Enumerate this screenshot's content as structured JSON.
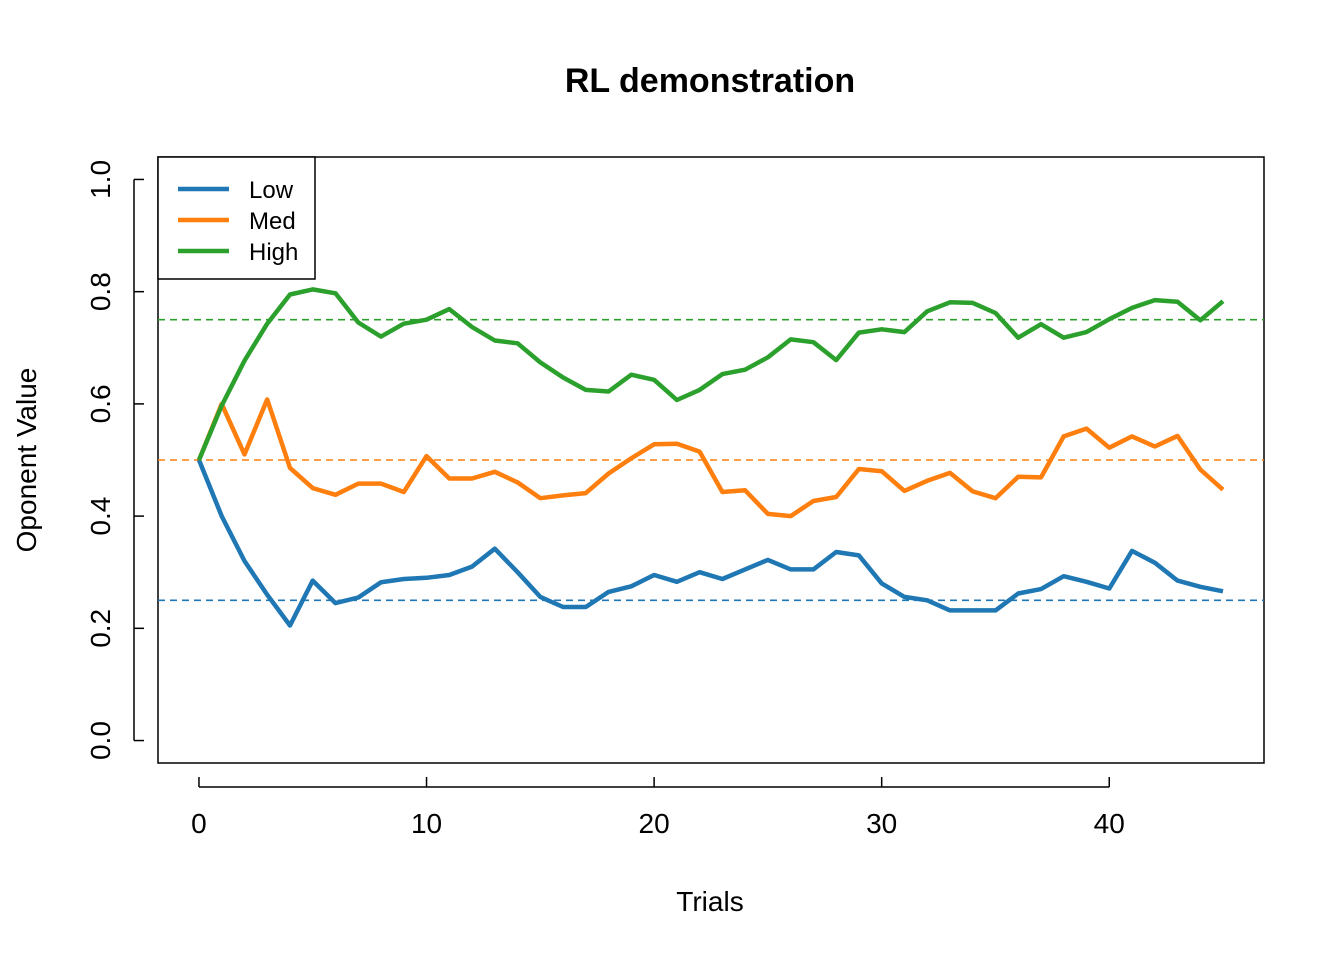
{
  "chart_data": {
    "type": "line",
    "title": "RL demonstration",
    "xlabel": "Trials",
    "ylabel": "Oponent Value",
    "xlim": [
      -1.8,
      46.8
    ],
    "ylim": [
      -0.04,
      1.04
    ],
    "xticks": [
      0,
      10,
      20,
      30,
      40
    ],
    "xtick_labels": [
      "0",
      "10",
      "20",
      "30",
      "40"
    ],
    "yticks": [
      0.0,
      0.2,
      0.4,
      0.6,
      0.8,
      1.0
    ],
    "ytick_labels": [
      "0.0",
      "0.2",
      "0.4",
      "0.6",
      "0.8",
      "1.0"
    ],
    "grid": false,
    "legend_position": "top-left",
    "x": [
      0,
      1,
      2,
      3,
      4,
      5,
      6,
      7,
      8,
      9,
      10,
      11,
      12,
      13,
      14,
      15,
      16,
      17,
      18,
      19,
      20,
      21,
      22,
      23,
      24,
      25,
      26,
      27,
      28,
      29,
      30,
      31,
      32,
      33,
      34,
      35,
      36,
      37,
      38,
      39,
      40,
      41,
      42,
      43,
      44,
      45
    ],
    "series": [
      {
        "name": "Low",
        "color": "#1f77b4",
        "values": [
          0.5,
          0.4,
          0.32,
          0.26,
          0.205,
          0.285,
          0.245,
          0.255,
          0.282,
          0.288,
          0.29,
          0.295,
          0.31,
          0.342,
          0.3,
          0.256,
          0.238,
          0.238,
          0.265,
          0.275,
          0.295,
          0.283,
          0.3,
          0.288,
          0.305,
          0.322,
          0.305,
          0.305,
          0.336,
          0.33,
          0.28,
          0.256,
          0.25,
          0.232,
          0.232,
          0.232,
          0.262,
          0.27,
          0.293,
          0.283,
          0.271,
          0.338,
          0.317,
          0.285,
          0.274,
          0.266
        ],
        "reference": 0.25
      },
      {
        "name": "Med",
        "color": "#ff7f0e",
        "values": [
          0.5,
          0.6,
          0.51,
          0.608,
          0.486,
          0.45,
          0.438,
          0.458,
          0.458,
          0.443,
          0.507,
          0.467,
          0.467,
          0.479,
          0.46,
          0.432,
          0.437,
          0.441,
          0.476,
          0.503,
          0.528,
          0.529,
          0.515,
          0.443,
          0.446,
          0.404,
          0.4,
          0.427,
          0.434,
          0.484,
          0.48,
          0.445,
          0.463,
          0.477,
          0.444,
          0.432,
          0.47,
          0.469,
          0.542,
          0.556,
          0.522,
          0.542,
          0.524,
          0.543,
          0.483,
          0.447
        ],
        "reference": 0.5
      },
      {
        "name": "High",
        "color": "#2ca02c",
        "values": [
          0.5,
          0.597,
          0.677,
          0.743,
          0.795,
          0.804,
          0.797,
          0.745,
          0.72,
          0.743,
          0.75,
          0.769,
          0.737,
          0.713,
          0.708,
          0.674,
          0.647,
          0.625,
          0.622,
          0.652,
          0.643,
          0.607,
          0.625,
          0.653,
          0.661,
          0.683,
          0.715,
          0.71,
          0.678,
          0.727,
          0.733,
          0.728,
          0.765,
          0.781,
          0.78,
          0.762,
          0.718,
          0.742,
          0.718,
          0.728,
          0.751,
          0.771,
          0.785,
          0.782,
          0.749,
          0.783
        ],
        "reference": 0.75
      }
    ]
  }
}
